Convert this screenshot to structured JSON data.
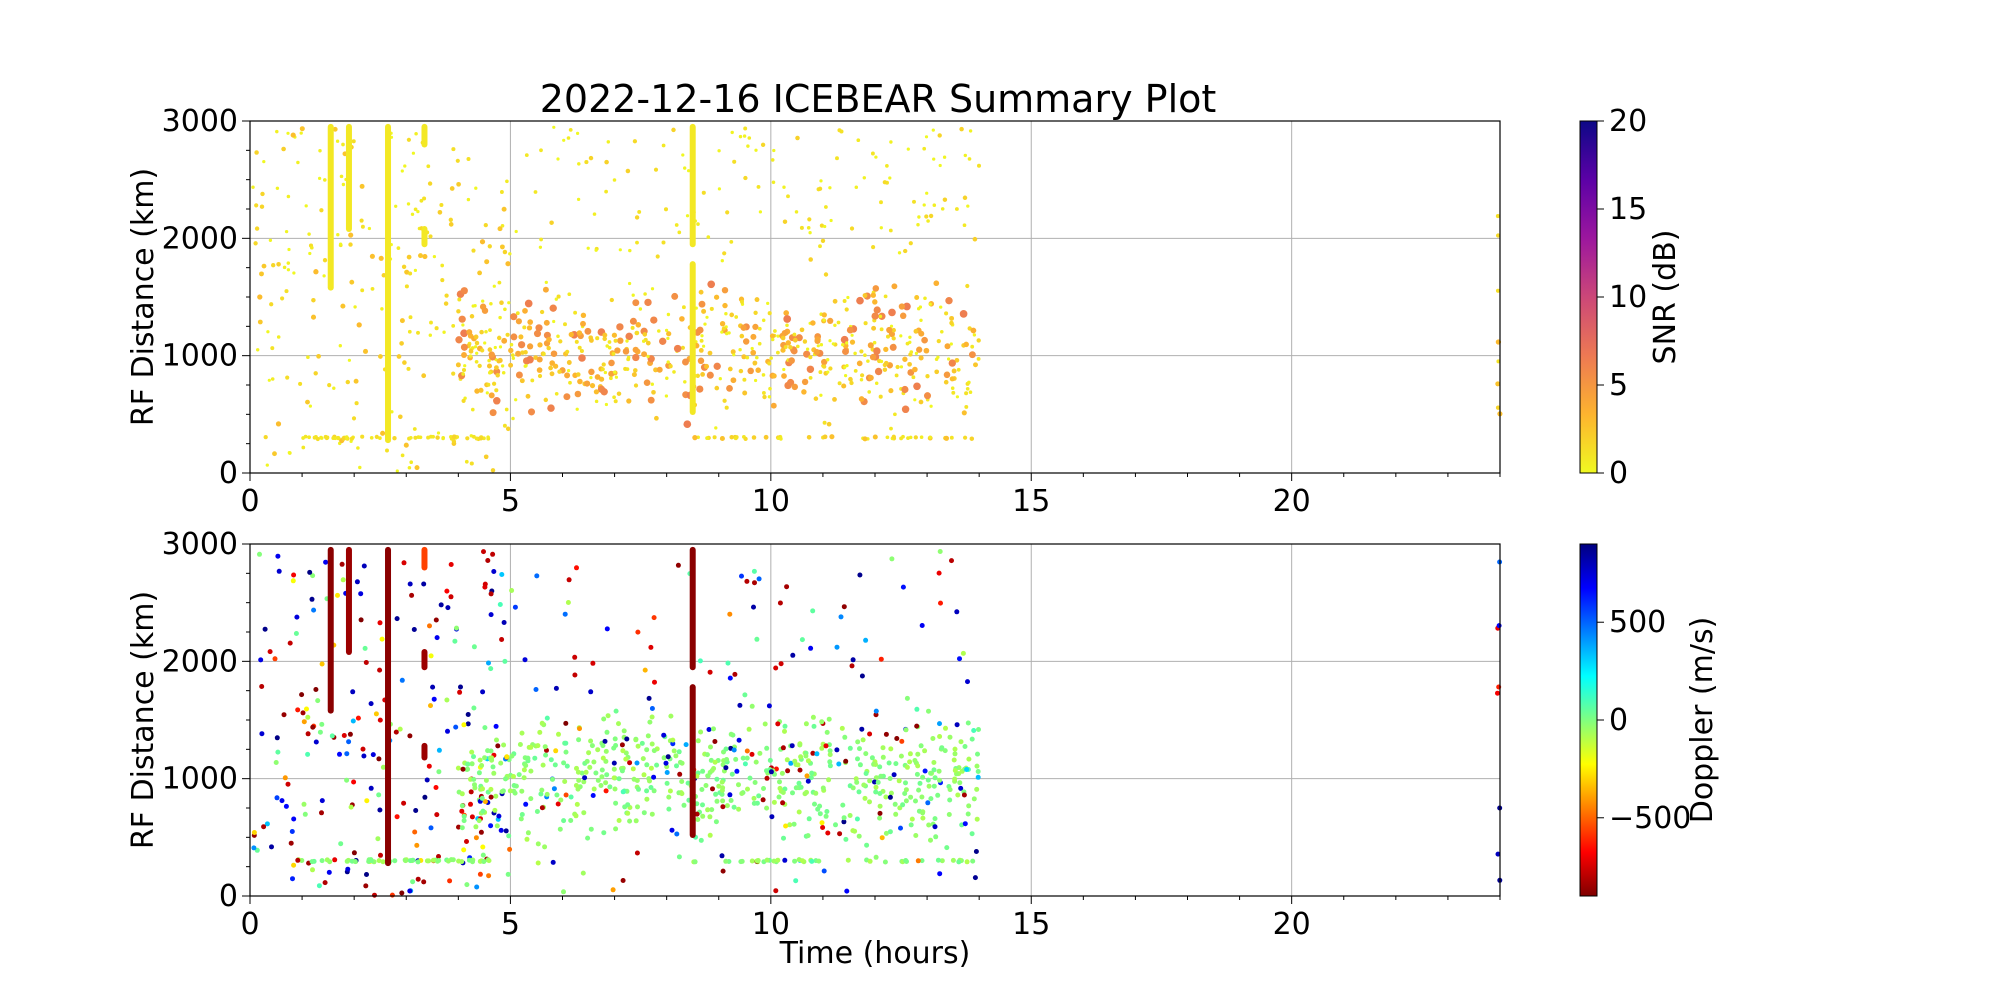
{
  "figure": {
    "title": "2022-12-16 ICEBEAR Summary Plot"
  },
  "chart_data": [
    {
      "type": "scatter",
      "panel": "snr",
      "ylabel": "RF Distance (km)",
      "xlabel": "",
      "xlim": [
        0,
        24
      ],
      "ylim": [
        0,
        3000
      ],
      "xticks": [
        0,
        5,
        10,
        15,
        20
      ],
      "yticks": [
        0,
        1000,
        2000,
        3000
      ],
      "grid": true,
      "colorbar": {
        "label": "SNR (dB)",
        "min": 0,
        "max": 20,
        "ticks": [
          0,
          5,
          10,
          15,
          20
        ],
        "tick_labels": [
          "0",
          "5",
          "10",
          "15",
          "20"
        ],
        "colormap": "plasma_r",
        "colors": [
          "#f0f921",
          "#fdb42f",
          "#ed7953",
          "#cc4778",
          "#9c179e",
          "#5c01a6",
          "#0d0887"
        ]
      },
      "streaks": [
        {
          "t": 1.55,
          "r0": 1580,
          "r1": 2950,
          "snr": 0.8
        },
        {
          "t": 1.9,
          "r0": 2080,
          "r1": 2950,
          "snr": 0.8
        },
        {
          "t": 2.65,
          "r0": 280,
          "r1": 2950,
          "snr": 0.8
        },
        {
          "t": 3.35,
          "r0": 1950,
          "r1": 2080,
          "snr": 0.8
        },
        {
          "t": 3.35,
          "r0": 2800,
          "r1": 2950,
          "snr": 0.8
        },
        {
          "t": 8.5,
          "r0": 520,
          "r1": 1780,
          "snr": 0.8
        },
        {
          "t": 8.5,
          "r0": 1950,
          "r1": 2950,
          "snr": 0.8
        }
      ],
      "clusters": [
        {
          "t0": 0.05,
          "t1": 5.0,
          "r0": 0,
          "r1": 2950,
          "n": 230,
          "snr0": 0,
          "snr1": 3
        },
        {
          "t0": 4.0,
          "t1": 14.0,
          "r0": 250,
          "r1": 1800,
          "n": 620,
          "snr0": 0,
          "snr1": 6.5
        },
        {
          "t0": 5.0,
          "t1": 14.0,
          "r0": 1800,
          "r1": 2950,
          "n": 140,
          "snr0": 0,
          "snr1": 2
        },
        {
          "t0": 0.9,
          "t1": 4.6,
          "r0": 290,
          "r1": 310,
          "n": 60,
          "snr0": 0.5,
          "snr1": 2
        },
        {
          "t0": 8.5,
          "t1": 13.9,
          "r0": 290,
          "r1": 310,
          "n": 45,
          "snr0": 0.5,
          "snr1": 3
        },
        {
          "t0": 23.95,
          "t1": 24.0,
          "r0": 400,
          "r1": 2700,
          "n": 8,
          "snr0": 1,
          "snr1": 4
        }
      ]
    },
    {
      "type": "scatter",
      "panel": "doppler",
      "ylabel": "RF Distance (km)",
      "xlabel": "Time (hours)",
      "xlim": [
        0,
        24
      ],
      "ylim": [
        0,
        3000
      ],
      "xticks": [
        0,
        5,
        10,
        15,
        20
      ],
      "yticks": [
        0,
        1000,
        2000,
        3000
      ],
      "grid": true,
      "colorbar": {
        "label": "Doppler (m/s)",
        "min": -900,
        "max": 900,
        "ticks": [
          -500,
          0,
          500
        ],
        "tick_labels": [
          "−500",
          "0",
          "500"
        ],
        "colormap": "jet_r",
        "colors": [
          "#7f0000",
          "#ff0000",
          "#ff8000",
          "#ffff00",
          "#80ff80",
          "#00ffff",
          "#0080ff",
          "#0000ff",
          "#00007f"
        ]
      },
      "streaks": [
        {
          "t": 1.55,
          "r0": 1580,
          "r1": 2950,
          "doppler": -880
        },
        {
          "t": 1.9,
          "r0": 2080,
          "r1": 2950,
          "doppler": -850
        },
        {
          "t": 2.65,
          "r0": 280,
          "r1": 2950,
          "doppler": -880
        },
        {
          "t": 3.35,
          "r0": 1950,
          "r1": 2080,
          "doppler": -850
        },
        {
          "t": 3.35,
          "r0": 2800,
          "r1": 2950,
          "doppler": -560
        },
        {
          "t": 3.35,
          "r0": 1180,
          "r1": 1280,
          "doppler": -850
        },
        {
          "t": 8.5,
          "r0": 520,
          "r1": 1780,
          "doppler": -880
        },
        {
          "t": 8.5,
          "r0": 1950,
          "r1": 2950,
          "doppler": -880
        }
      ],
      "clusters": [
        {
          "t0": 0.05,
          "t1": 5.0,
          "r0": 0,
          "r1": 2950,
          "n": 230,
          "dop": "mixed"
        },
        {
          "t0": 4.0,
          "t1": 14.0,
          "r0": 250,
          "r1": 1800,
          "n": 620,
          "dop": "green"
        },
        {
          "t0": 5.0,
          "t1": 14.0,
          "r0": 0,
          "r1": 2950,
          "n": 140,
          "dop": "mixed"
        },
        {
          "t0": 0.9,
          "t1": 4.6,
          "r0": 290,
          "r1": 310,
          "n": 60,
          "dop": "green"
        },
        {
          "t0": 8.5,
          "t1": 13.9,
          "r0": 290,
          "r1": 310,
          "n": 45,
          "dop": "green"
        },
        {
          "t0": 23.95,
          "t1": 24.0,
          "r0": 100,
          "r1": 2900,
          "n": 8,
          "dop": "mixed"
        }
      ]
    }
  ]
}
